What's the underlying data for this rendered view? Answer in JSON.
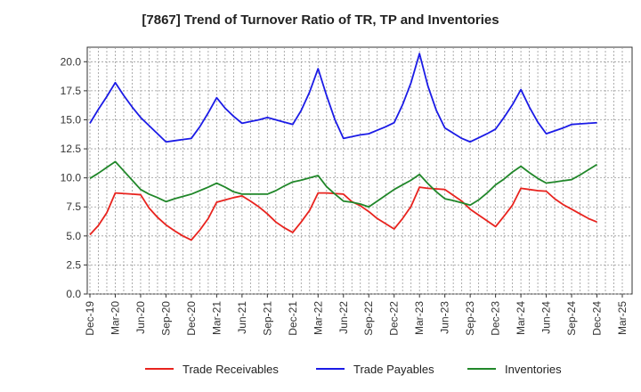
{
  "chart_data": {
    "type": "line",
    "title": "[7867]  Trend of Turnover Ratio of TR, TP and Inventories",
    "xlabel": "",
    "ylabel": "",
    "ylim": [
      0,
      21.25
    ],
    "yticks": [
      "0.0",
      "2.5",
      "5.0",
      "7.5",
      "10.0",
      "12.5",
      "15.0",
      "17.5",
      "20.0"
    ],
    "xticks": [
      "Dec-19",
      "Mar-20",
      "Jun-20",
      "Sep-20",
      "Dec-20",
      "Mar-21",
      "Jun-21",
      "Sep-21",
      "Dec-21",
      "Mar-22",
      "Jun-22",
      "Sep-22",
      "Dec-22",
      "Mar-23",
      "Jun-23",
      "Sep-23",
      "Dec-23",
      "Mar-24",
      "Jun-24",
      "Sep-24",
      "Dec-24",
      "Mar-25"
    ],
    "grid": true,
    "legend_position": "bottom",
    "x": [
      "Dec-19",
      "Jan-20",
      "Feb-20",
      "Mar-20",
      "Apr-20",
      "May-20",
      "Jun-20",
      "Jul-20",
      "Aug-20",
      "Sep-20",
      "Oct-20",
      "Nov-20",
      "Dec-20",
      "Jan-21",
      "Feb-21",
      "Mar-21",
      "Apr-21",
      "May-21",
      "Jun-21",
      "Jul-21",
      "Aug-21",
      "Sep-21",
      "Oct-21",
      "Nov-21",
      "Dec-21",
      "Jan-22",
      "Feb-22",
      "Mar-22",
      "Apr-22",
      "May-22",
      "Jun-22",
      "Jul-22",
      "Aug-22",
      "Sep-22",
      "Oct-22",
      "Nov-22",
      "Dec-22",
      "Jan-23",
      "Feb-23",
      "Mar-23",
      "Apr-23",
      "May-23",
      "Jun-23",
      "Jul-23",
      "Aug-23",
      "Sep-23",
      "Oct-23",
      "Nov-23",
      "Dec-23",
      "Jan-24",
      "Feb-24",
      "Mar-24",
      "Apr-24",
      "May-24",
      "Jun-24",
      "Jul-24",
      "Aug-24",
      "Sep-24",
      "Oct-24",
      "Nov-24",
      "Dec-24"
    ],
    "series": [
      {
        "name": "Trade Receivables",
        "color": "#e8231e",
        "values": [
          5.1,
          5.9,
          7.0,
          8.7,
          8.65,
          8.6,
          8.55,
          7.4,
          6.6,
          5.95,
          5.45,
          5.0,
          4.65,
          5.5,
          6.5,
          7.9,
          8.1,
          8.3,
          8.45,
          8.0,
          7.5,
          6.9,
          6.2,
          5.7,
          5.3,
          6.2,
          7.2,
          8.7,
          8.7,
          8.65,
          8.6,
          7.95,
          7.6,
          7.1,
          6.5,
          6.05,
          5.6,
          6.5,
          7.55,
          9.2,
          9.1,
          9.05,
          9.0,
          8.5,
          8.0,
          7.3,
          6.8,
          6.3,
          5.8,
          6.7,
          7.65,
          9.1,
          9.0,
          8.9,
          8.85,
          8.2,
          7.7,
          7.3,
          6.9,
          6.5,
          6.2
        ]
      },
      {
        "name": "Trade Payables",
        "color": "#1b1be6",
        "values": [
          14.7,
          15.9,
          17.0,
          18.2,
          17.1,
          16.1,
          15.2,
          14.5,
          13.8,
          13.1,
          13.2,
          13.3,
          13.4,
          14.4,
          15.6,
          16.9,
          16.0,
          15.3,
          14.7,
          14.85,
          15.0,
          15.2,
          15.0,
          14.8,
          14.6,
          15.8,
          17.4,
          19.4,
          17.1,
          15.0,
          13.4,
          13.55,
          13.7,
          13.8,
          14.1,
          14.4,
          14.75,
          16.3,
          18.2,
          20.7,
          17.9,
          15.8,
          14.3,
          13.85,
          13.4,
          13.1,
          13.45,
          13.8,
          14.2,
          15.2,
          16.3,
          17.6,
          16.1,
          14.8,
          13.8,
          14.05,
          14.3,
          14.6,
          14.65,
          14.7,
          14.75
        ]
      },
      {
        "name": "Inventories",
        "color": "#21872a",
        "values": [
          9.95,
          10.4,
          10.9,
          11.4,
          10.6,
          9.8,
          9.0,
          8.6,
          8.3,
          7.95,
          8.2,
          8.4,
          8.6,
          8.9,
          9.2,
          9.55,
          9.2,
          8.8,
          8.6,
          8.6,
          8.6,
          8.6,
          8.9,
          9.3,
          9.65,
          9.8,
          10.0,
          10.2,
          9.25,
          8.6,
          8.0,
          7.9,
          7.75,
          7.5,
          8.0,
          8.5,
          9.0,
          9.4,
          9.8,
          10.3,
          9.5,
          8.8,
          8.2,
          8.05,
          7.85,
          7.65,
          8.1,
          8.7,
          9.4,
          9.9,
          10.5,
          11.0,
          10.45,
          9.95,
          9.55,
          9.65,
          9.75,
          9.85,
          10.25,
          10.7,
          11.15
        ]
      }
    ]
  }
}
